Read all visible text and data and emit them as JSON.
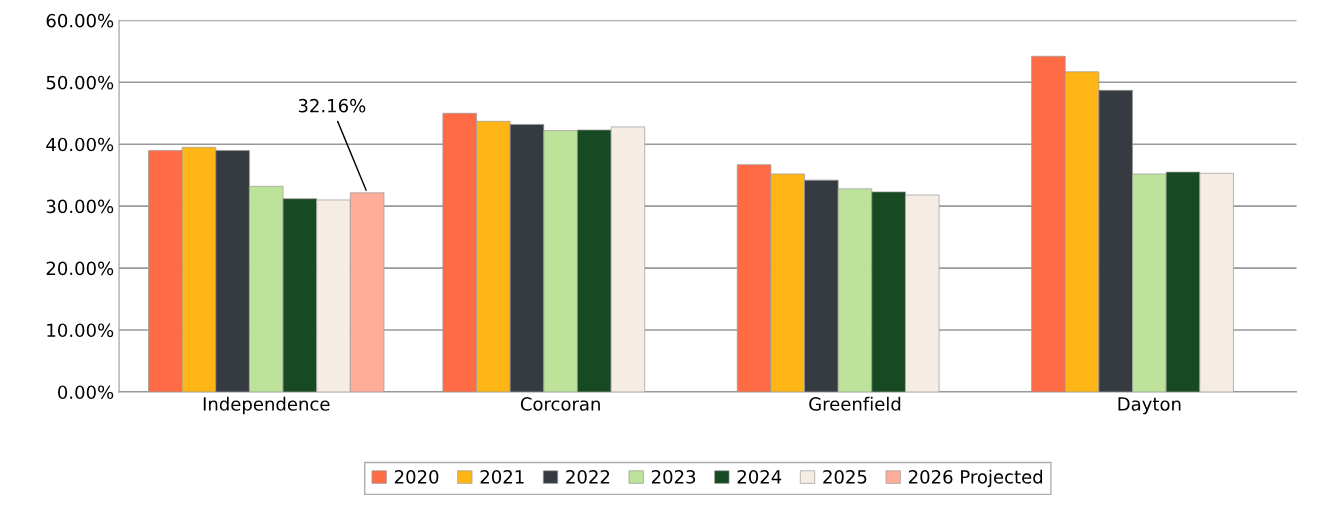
{
  "chart_data": {
    "type": "bar",
    "categories": [
      "Independence",
      "Corcoran",
      "Greenfield",
      "Dayton"
    ],
    "series": [
      {
        "name": "2020",
        "color": "#ff6b45",
        "values": [
          39.0,
          45.0,
          36.7,
          54.2
        ]
      },
      {
        "name": "2021",
        "color": "#ffb515",
        "values": [
          39.5,
          43.7,
          35.2,
          51.7
        ]
      },
      {
        "name": "2022",
        "color": "#363b42",
        "values": [
          39.0,
          43.2,
          34.2,
          48.7
        ]
      },
      {
        "name": "2023",
        "color": "#bce399",
        "values": [
          33.2,
          42.2,
          32.8,
          35.2
        ]
      },
      {
        "name": "2024",
        "color": "#174a22",
        "values": [
          31.2,
          42.3,
          32.3,
          35.5
        ]
      },
      {
        "name": "2025",
        "color": "#f5ede4",
        "values": [
          31.0,
          42.8,
          31.8,
          35.3
        ]
      },
      {
        "name": "2026 Projected",
        "color": "#ffad98",
        "values": [
          32.16,
          null,
          null,
          null
        ],
        "value_labels": [
          "32.16%",
          null,
          null,
          null
        ]
      }
    ],
    "ylim": [
      0,
      60
    ],
    "yticks": [
      {
        "value": 0,
        "label": "0.00%"
      },
      {
        "value": 10,
        "label": "10.00%"
      },
      {
        "value": 20,
        "label": "20.00%"
      },
      {
        "value": 30,
        "label": "30.00%"
      },
      {
        "value": 40,
        "label": "40.00%"
      },
      {
        "value": 50,
        "label": "50.00%"
      },
      {
        "value": 60,
        "label": "60.00%"
      }
    ],
    "grid": "y",
    "legend": "bottom"
  }
}
